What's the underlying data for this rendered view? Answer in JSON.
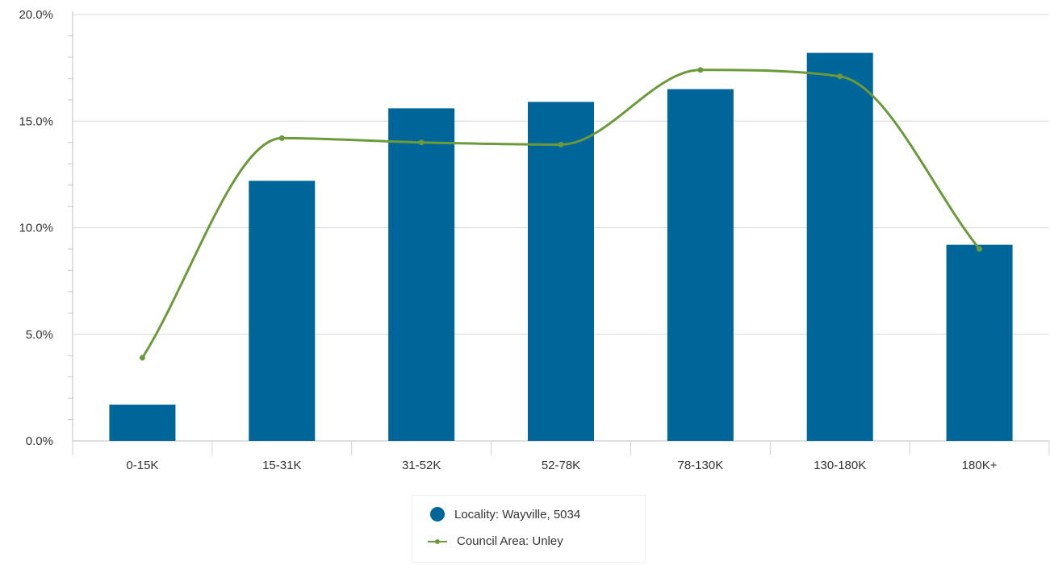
{
  "chart_data": {
    "type": "bar",
    "categories": [
      "0-15K",
      "15-31K",
      "31-52K",
      "52-78K",
      "78-130K",
      "130-180K",
      "180K+"
    ],
    "series": [
      {
        "name": "Locality: Wayville, 5034",
        "type": "bar",
        "color": "#006699",
        "values": [
          1.7,
          12.2,
          15.6,
          15.9,
          16.5,
          18.2,
          9.2
        ]
      },
      {
        "name": "Council Area: Unley",
        "type": "line",
        "color": "#6a9a3a",
        "values": [
          3.9,
          14.2,
          14.0,
          13.9,
          17.4,
          17.1,
          9.0
        ]
      }
    ],
    "ylim": [
      0,
      20
    ],
    "yticks": [
      "0.0%",
      "5.0%",
      "10.0%",
      "15.0%",
      "20.0%"
    ],
    "ytick_values": [
      0,
      5,
      10,
      15,
      20
    ],
    "grid": true,
    "legend_position": "bottom-center"
  }
}
